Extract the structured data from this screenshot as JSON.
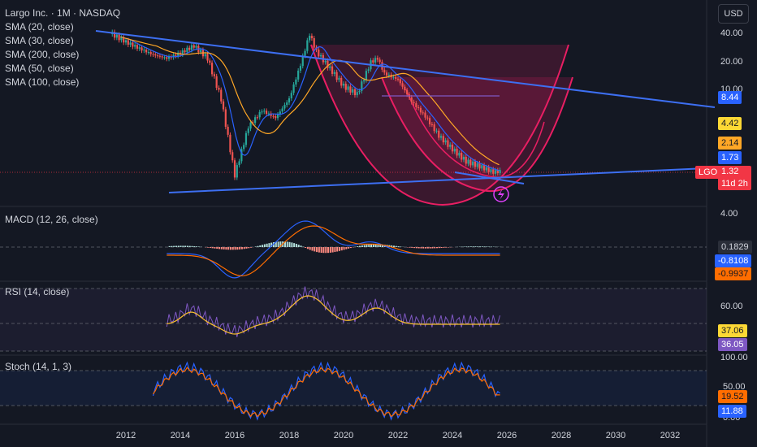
{
  "header": {
    "title": "Largo Inc. · 1M · NASDAQ",
    "currency": "USD",
    "sma": [
      "SMA (20, close)",
      "SMA (30, close)",
      "SMA (200, close)",
      "SMA (50, close)",
      "SMA (100, close)"
    ]
  },
  "colors": {
    "up": "#26a69a",
    "down": "#ef5350",
    "trend": "#3d6ff2",
    "cup": "#e91e63",
    "sma20": "#2962ff",
    "sma50": "#ffa726",
    "macd": "#2962ff",
    "signal": "#ff6d00",
    "rsi": "#7e57c2",
    "rsi_ma": "#fbc02d",
    "stoch_k": "#2962ff",
    "stoch_d": "#ff6d00"
  },
  "price_axis": {
    "ticks": [
      "40.00",
      "20.00",
      "10.00"
    ]
  },
  "price_tags": [
    {
      "label": "8.44",
      "bg": "#2962ff",
      "fg": "#ffffff"
    },
    {
      "label": "4.42",
      "bg": "#fdd835",
      "fg": "#131722"
    },
    {
      "label": "2.14",
      "bg": "#ffa726",
      "fg": "#131722"
    },
    {
      "label": "1.73",
      "bg": "#2962ff",
      "fg": "#ffffff"
    }
  ],
  "symbol": {
    "ticker": "LGO",
    "last": "1.32",
    "countdown": "11d 2h"
  },
  "macd": {
    "title": "MACD (12, 26, close)",
    "axis": "4.00",
    "hist": "0.1829",
    "macd": "-0.8108",
    "signal": "-0.9937"
  },
  "rsi": {
    "title": "RSI (14, close)",
    "axis": "60.00",
    "ma": "37.06",
    "value": "36.05"
  },
  "stoch": {
    "title": "Stoch (14, 1, 3)",
    "axis_top": "100.00",
    "axis_mid": "50.00",
    "axis_bot": "0.00",
    "d": "19.52",
    "k": "11.88"
  },
  "xaxis": [
    "2012",
    "2014",
    "2016",
    "2018",
    "2020",
    "2022",
    "2024",
    "2026",
    "2028",
    "2030",
    "2032"
  ],
  "chart_data": {
    "type": "line",
    "title": "Largo Inc. · 1M · NASDAQ",
    "yscale": "log",
    "ylim": [
      0.8,
      50
    ],
    "x": [
      2011.5,
      2012.0,
      2012.5,
      2013.0,
      2013.5,
      2014.0,
      2014.5,
      2015.0,
      2015.5,
      2016.0,
      2016.5,
      2017.0,
      2017.5,
      2018.0,
      2018.4,
      2018.75,
      2019.0,
      2019.5,
      2020.0,
      2020.5,
      2021.0,
      2021.25,
      2021.5,
      2022.0,
      2022.5,
      2023.0,
      2023.5,
      2024.0,
      2024.5,
      2025.0,
      2025.5,
      2025.75
    ],
    "series": [
      {
        "values": [
          40,
          33,
          28,
          24,
          22,
          25,
          30,
          22,
          8,
          1.2,
          4,
          6,
          5,
          8,
          18,
          40,
          26,
          17,
          11,
          9,
          20,
          22,
          15,
          13,
          7.5,
          5.2,
          3.2,
          2.3,
          1.7,
          1.5,
          1.3,
          1.32
        ]
      }
    ]
  }
}
